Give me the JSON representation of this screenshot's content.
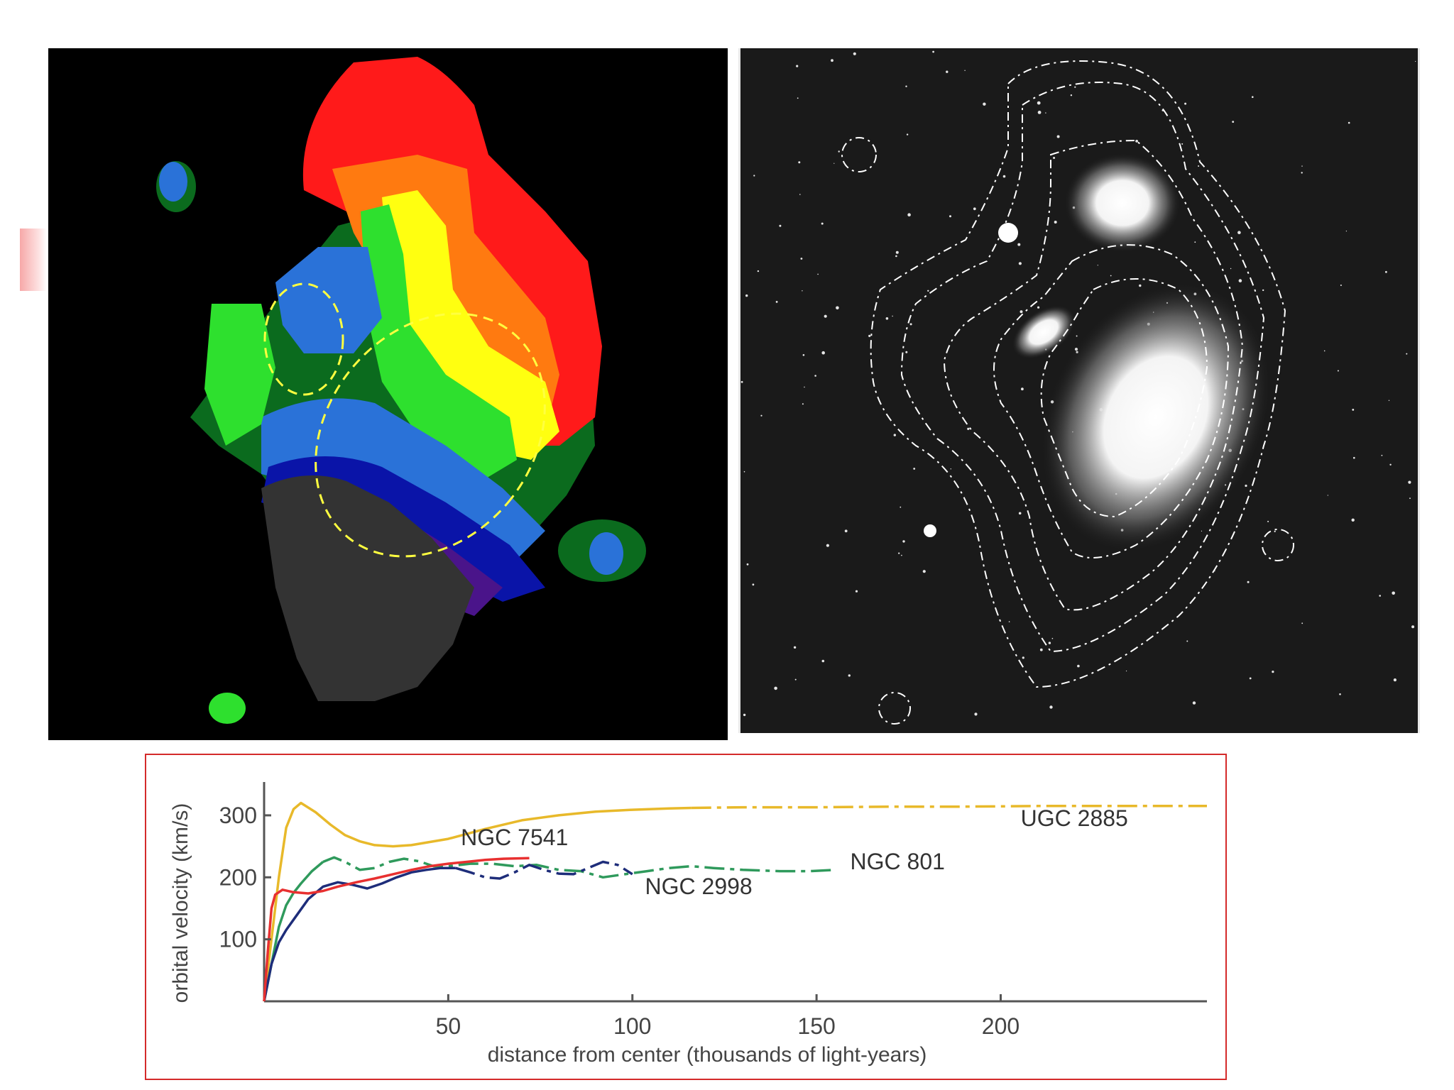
{
  "figure": {
    "left_panel": {
      "description_icon": "velocity-map-image"
    },
    "right_panel": {
      "description_icon": "galaxy-contour-photo"
    }
  },
  "chart_data": {
    "type": "line",
    "title": "",
    "xlabel": "distance from center (thousands of light-years)",
    "ylabel": "orbital velocity (km/s)",
    "xlim": [
      0,
      256
    ],
    "ylim": [
      0,
      340
    ],
    "xticks": [
      50,
      100,
      150,
      200
    ],
    "yticks": [
      100,
      200,
      300
    ],
    "grid": false,
    "legend": "none",
    "series": [
      {
        "name": "UGC 2885",
        "color": "#e8b92a",
        "dash_after_x": 116,
        "x": [
          0,
          2,
          4,
          6,
          8,
          10,
          14,
          18,
          22,
          26,
          30,
          35,
          40,
          50,
          60,
          70,
          80,
          90,
          100,
          110,
          116,
          130,
          150,
          170,
          190,
          210,
          230,
          256
        ],
        "y": [
          0,
          100,
          200,
          280,
          310,
          320,
          305,
          285,
          268,
          258,
          252,
          250,
          252,
          262,
          278,
          292,
          300,
          306,
          309,
          311,
          312,
          313,
          313,
          314,
          314,
          315,
          315,
          315
        ]
      },
      {
        "name": "NGC 801",
        "color": "#2f9a5c",
        "dash_after_x": 16,
        "x": [
          0,
          2,
          4,
          6,
          8,
          10,
          13,
          16,
          19,
          22,
          26,
          30,
          34,
          38,
          42,
          46,
          50,
          56,
          62,
          68,
          74,
          80,
          86,
          92,
          98,
          104,
          110,
          116,
          122,
          130,
          140,
          148,
          155
        ],
        "y": [
          0,
          60,
          120,
          155,
          175,
          190,
          210,
          225,
          232,
          225,
          212,
          215,
          225,
          230,
          226,
          218,
          218,
          222,
          222,
          218,
          220,
          212,
          210,
          200,
          205,
          210,
          215,
          218,
          215,
          212,
          210,
          210,
          212
        ]
      },
      {
        "name": "NGC 2998",
        "color": "#1e2d7a",
        "dash_after_x": 52,
        "x": [
          0,
          2,
          4,
          6,
          9,
          12,
          16,
          20,
          24,
          28,
          32,
          36,
          40,
          44,
          48,
          52,
          56,
          60,
          64,
          68,
          72,
          76,
          80,
          84,
          88,
          92,
          96,
          100
        ],
        "y": [
          0,
          60,
          95,
          115,
          140,
          165,
          185,
          192,
          188,
          182,
          190,
          200,
          208,
          212,
          215,
          215,
          208,
          200,
          198,
          208,
          220,
          212,
          206,
          205,
          215,
          225,
          220,
          205
        ]
      },
      {
        "name": "NGC 7541",
        "color": "#e83030",
        "dash_after_x": null,
        "x": [
          0,
          1,
          2,
          3,
          5,
          8,
          12,
          16,
          20,
          25,
          30,
          35,
          40,
          45,
          50,
          55,
          60,
          65,
          72
        ],
        "y": [
          0,
          80,
          150,
          172,
          180,
          176,
          174,
          178,
          185,
          192,
          198,
          205,
          212,
          218,
          222,
          225,
          228,
          230,
          231
        ]
      }
    ],
    "annotations": [
      {
        "text": "UGC 2885",
        "x": 220,
        "y": 283
      },
      {
        "text": "NGC 7541",
        "x": 68,
        "y": 252
      },
      {
        "text": "NGC 801",
        "x": 172,
        "y": 213
      },
      {
        "text": "NGC 2998",
        "x": 118,
        "y": 173
      }
    ]
  }
}
